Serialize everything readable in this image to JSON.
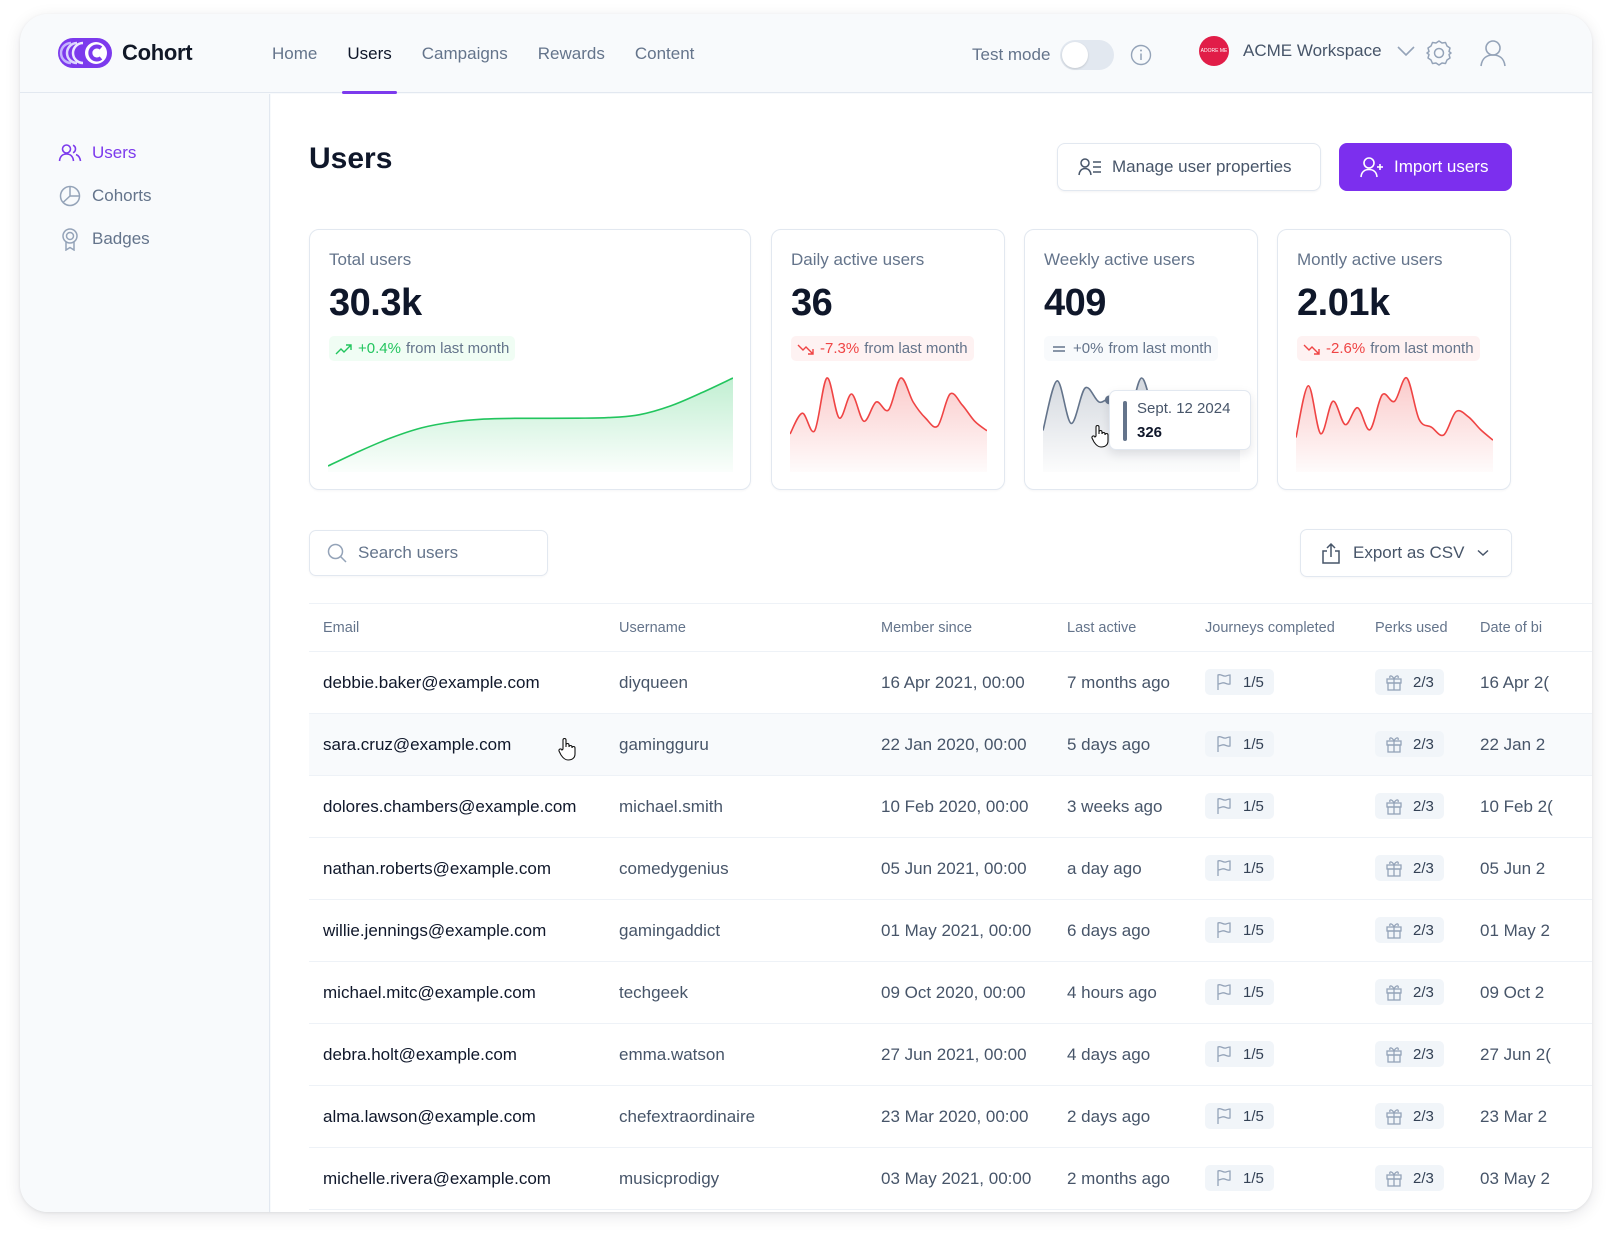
{
  "app": {
    "name": "Cohort",
    "brand_color": "#7c3aed"
  },
  "nav": {
    "items": [
      {
        "label": "Home",
        "active": false
      },
      {
        "label": "Users",
        "active": true
      },
      {
        "label": "Campaigns",
        "active": false
      },
      {
        "label": "Rewards",
        "active": false
      },
      {
        "label": "Content",
        "active": false
      }
    ]
  },
  "header": {
    "test_mode_label": "Test mode",
    "test_mode_on": false,
    "info_icon": "info-icon",
    "workspace_name": "ACME Workspace",
    "workspace_avatar_text": "ADORE ME",
    "settings_icon": "gear-icon",
    "profile_icon": "user-icon"
  },
  "sidebar": {
    "items": [
      {
        "label": "Users",
        "icon": "users-icon",
        "active": true
      },
      {
        "label": "Cohorts",
        "icon": "pie-chart-icon",
        "active": false
      },
      {
        "label": "Badges",
        "icon": "badge-icon",
        "active": false
      }
    ]
  },
  "page": {
    "title": "Users",
    "manage_button": "Manage user properties",
    "import_button": "Import users"
  },
  "stats": [
    {
      "label": "Total users",
      "value": "30.3k",
      "trend": "up",
      "change": "+0.4%",
      "suffix": "from last month",
      "color": "#22c55e"
    },
    {
      "label": "Daily active users",
      "value": "36",
      "trend": "down",
      "change": "-7.3%",
      "suffix": "from last month",
      "color": "#ef4444"
    },
    {
      "label": "Weekly active users",
      "value": "409",
      "trend": "flat",
      "change": "+0%",
      "suffix": "from last month",
      "color": "#64748b"
    },
    {
      "label": "Montly active users",
      "value": "2.01k",
      "trend": "down",
      "change": "-2.6%",
      "suffix": "from last month",
      "color": "#ef4444"
    }
  ],
  "tooltip": {
    "date": "Sept. 12 2024",
    "value": "326"
  },
  "chart_data": [
    {
      "type": "area",
      "title": "Total users",
      "values": [
        0,
        10,
        19,
        26,
        30,
        32,
        32.5,
        32.5,
        32.6,
        33,
        35,
        41,
        50,
        60
      ]
    },
    {
      "type": "area",
      "title": "Daily active users",
      "values": [
        20,
        33,
        22,
        55,
        30,
        45,
        28,
        40,
        35,
        55,
        40,
        30,
        25,
        45,
        38,
        28,
        22
      ]
    },
    {
      "type": "area",
      "title": "Weekly active users",
      "values": [
        25,
        60,
        30,
        55,
        45,
        48,
        32,
        62,
        35,
        40,
        38,
        30,
        28,
        26,
        30
      ]
    },
    {
      "type": "area",
      "title": "Montly active users",
      "values": [
        22,
        62,
        25,
        50,
        32,
        45,
        28,
        55,
        50,
        68,
        36,
        30,
        24,
        42,
        38,
        28,
        20
      ]
    }
  ],
  "table": {
    "search_placeholder": "Search users",
    "export_label": "Export as CSV",
    "columns": [
      "Email",
      "Username",
      "Member since",
      "Last active",
      "Journeys completed",
      "Perks used",
      "Date of bi"
    ],
    "rows": [
      {
        "email": "debbie.baker@example.com",
        "username": "diyqueen",
        "since": "16 Apr 2021, 00:00",
        "last": "7 months ago",
        "journeys": "1/5",
        "perks": "2/3",
        "dob": "16 Apr 2("
      },
      {
        "email": "sara.cruz@example.com",
        "username": "gamingguru",
        "since": "22 Jan 2020, 00:00",
        "last": "5 days ago",
        "journeys": "1/5",
        "perks": "2/3",
        "dob": "22 Jan 2"
      },
      {
        "email": "dolores.chambers@example.com",
        "username": "michael.smith",
        "since": "10 Feb 2020, 00:00",
        "last": "3 weeks ago",
        "journeys": "1/5",
        "perks": "2/3",
        "dob": "10 Feb 2("
      },
      {
        "email": "nathan.roberts@example.com",
        "username": "comedygenius",
        "since": "05 Jun 2021, 00:00",
        "last": "a day ago",
        "journeys": "1/5",
        "perks": "2/3",
        "dob": "05 Jun 2"
      },
      {
        "email": "willie.jennings@example.com",
        "username": "gamingaddict",
        "since": "01 May 2021, 00:00",
        "last": "6 days ago",
        "journeys": "1/5",
        "perks": "2/3",
        "dob": "01 May 2"
      },
      {
        "email": "michael.mitc@example.com",
        "username": "techgeek",
        "since": "09 Oct 2020, 00:00",
        "last": "4 hours ago",
        "journeys": "1/5",
        "perks": "2/3",
        "dob": "09 Oct 2"
      },
      {
        "email": "debra.holt@example.com",
        "username": "emma.watson",
        "since": "27 Jun 2021, 00:00",
        "last": "4 days ago",
        "journeys": "1/5",
        "perks": "2/3",
        "dob": "27 Jun 2("
      },
      {
        "email": "alma.lawson@example.com",
        "username": "chefextraordinaire",
        "since": "23 Mar 2020, 00:00",
        "last": "2 days ago",
        "journeys": "1/5",
        "perks": "2/3",
        "dob": "23 Mar 2"
      },
      {
        "email": "michelle.rivera@example.com",
        "username": "musicprodigy",
        "since": "03 May 2021, 00:00",
        "last": "2 months ago",
        "journeys": "1/5",
        "perks": "2/3",
        "dob": "03 May 2"
      }
    ]
  }
}
